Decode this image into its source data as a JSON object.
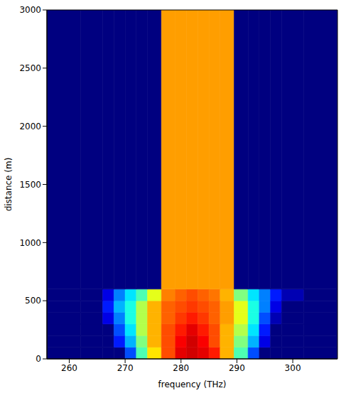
{
  "chart_data": {
    "type": "heatmap",
    "x_label": "frequency (THz)",
    "y_label": "distance (m)",
    "xlim": [
      256,
      308
    ],
    "ylim": [
      0,
      3000
    ],
    "xticks": [
      260,
      270,
      280,
      290,
      300
    ],
    "yticks": [
      0,
      500,
      1000,
      1500,
      2000,
      2500,
      3000
    ],
    "x_edges": [
      256,
      262,
      266,
      268,
      270,
      272,
      274,
      276.5,
      279,
      281,
      283,
      285,
      287,
      289.5,
      292,
      294,
      296,
      298,
      302,
      308
    ],
    "y_edges": [
      0,
      100,
      200,
      300,
      400,
      500,
      600,
      3000
    ],
    "zlim": [
      0,
      1
    ],
    "cells": [
      [
        0,
        0,
        0,
        0,
        0.2,
        0.45,
        0.65,
        0.8,
        0.9,
        0.92,
        0.9,
        0.85,
        0.7,
        0.45,
        0.2,
        0,
        0,
        0,
        0
      ],
      [
        0,
        0,
        0,
        0.15,
        0.3,
        0.5,
        0.7,
        0.8,
        0.88,
        0.92,
        0.88,
        0.8,
        0.7,
        0.5,
        0.3,
        0.1,
        0,
        0,
        0
      ],
      [
        0,
        0,
        0,
        0.2,
        0.35,
        0.55,
        0.7,
        0.8,
        0.85,
        0.9,
        0.85,
        0.8,
        0.7,
        0.55,
        0.35,
        0.15,
        0,
        0,
        0
      ],
      [
        0,
        0,
        0.1,
        0.25,
        0.4,
        0.55,
        0.7,
        0.78,
        0.82,
        0.85,
        0.82,
        0.78,
        0.72,
        0.6,
        0.4,
        0.2,
        0.05,
        0,
        0
      ],
      [
        0,
        0,
        0.15,
        0.3,
        0.4,
        0.55,
        0.7,
        0.78,
        0.8,
        0.82,
        0.8,
        0.78,
        0.72,
        0.6,
        0.4,
        0.25,
        0.1,
        0,
        0
      ],
      [
        0,
        0,
        0.1,
        0.25,
        0.35,
        0.45,
        0.6,
        0.75,
        0.78,
        0.8,
        0.78,
        0.76,
        0.7,
        0.5,
        0.35,
        0.25,
        0.15,
        0.05,
        0
      ],
      [
        0,
        0,
        0,
        0,
        0,
        0,
        0,
        0.72,
        0.72,
        0.72,
        0.72,
        0.72,
        0.72,
        0,
        0,
        0,
        0,
        0,
        0
      ]
    ]
  }
}
